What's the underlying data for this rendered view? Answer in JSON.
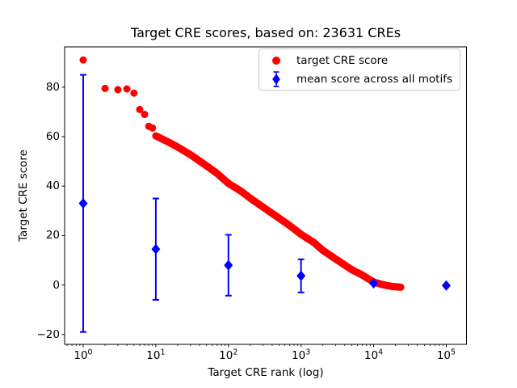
{
  "figure": {
    "title": "Target CRE scores, based on: 23631 CREs",
    "xlabel": "Target CRE rank (log)",
    "ylabel": "Target CRE score"
  },
  "legend": {
    "position": "upper right",
    "items": [
      {
        "label": "target CRE score",
        "marker": "circle",
        "color": "#ff0000"
      },
      {
        "label": "mean score across all motifs",
        "marker": "diamond-with-errorbar",
        "color": "#0000ff"
      }
    ]
  },
  "chart_data": {
    "type": "scatter",
    "title": "Target CRE scores, based on: 23631 CREs",
    "xlabel": "Target CRE rank (log)",
    "ylabel": "Target CRE score",
    "x_scale": "log",
    "grid": false,
    "xlim": [
      0.555,
      190000
    ],
    "ylim": [
      -24,
      96.3
    ],
    "x_ticks": [
      {
        "value": 1,
        "base": "10",
        "exp": "0"
      },
      {
        "value": 10,
        "base": "10",
        "exp": "1"
      },
      {
        "value": 100,
        "base": "10",
        "exp": "2"
      },
      {
        "value": 1000,
        "base": "10",
        "exp": "3"
      },
      {
        "value": 10000,
        "base": "10",
        "exp": "4"
      },
      {
        "value": 100000,
        "base": "10",
        "exp": "5"
      }
    ],
    "y_ticks": [
      {
        "value": 80,
        "label": "80"
      },
      {
        "value": 60,
        "label": "60"
      },
      {
        "value": 40,
        "label": "40"
      },
      {
        "value": 20,
        "label": "20"
      },
      {
        "value": 0,
        "label": "0"
      },
      {
        "value": -20,
        "label": "−20"
      }
    ],
    "series": [
      {
        "name": "target CRE score",
        "marker": "circle",
        "color": "#ff0000",
        "marker_size_px": 9,
        "sampling_note": "23631 ranked CRE scores forming a dense descending band; downsampled to anchor points [rank, score], linear between anchors in log10(rank)",
        "points": [
          [
            1,
            91
          ],
          [
            2,
            79.5
          ],
          [
            3,
            79
          ],
          [
            4,
            79.3
          ],
          [
            5,
            77.6
          ],
          [
            6,
            71
          ],
          [
            7,
            69
          ],
          [
            8,
            64.2
          ],
          [
            9,
            63.5
          ],
          [
            10,
            60.3
          ],
          [
            15,
            57.8
          ],
          [
            20,
            55.8
          ],
          [
            30,
            52.7
          ],
          [
            50,
            48.2
          ],
          [
            70,
            45.1
          ],
          [
            100,
            41.1
          ],
          [
            150,
            37.9
          ],
          [
            200,
            35.1
          ],
          [
            300,
            31.5
          ],
          [
            500,
            27
          ],
          [
            700,
            24
          ],
          [
            1000,
            20.5
          ],
          [
            1500,
            17.2
          ],
          [
            2000,
            14
          ],
          [
            3000,
            10.5
          ],
          [
            5000,
            6.2
          ],
          [
            7000,
            4
          ],
          [
            10000,
            1.2
          ],
          [
            14000,
            0
          ],
          [
            18000,
            -0.6
          ],
          [
            23631,
            -0.9
          ]
        ]
      },
      {
        "name": "mean score across all motifs",
        "marker": "diamond",
        "color": "#0000ff",
        "marker_size_px": 12,
        "points": [
          {
            "x": 1,
            "y": 33,
            "yerr": 52
          },
          {
            "x": 10,
            "y": 14.5,
            "yerr": 20.5
          },
          {
            "x": 100,
            "y": 8,
            "yerr": 12.3
          },
          {
            "x": 1000,
            "y": 3.7,
            "yerr": 6.7
          },
          {
            "x": 10000,
            "y": 0.7,
            "yerr": 1.8
          },
          {
            "x": 100000,
            "y": -0.2,
            "yerr": 1.2
          }
        ]
      }
    ]
  }
}
